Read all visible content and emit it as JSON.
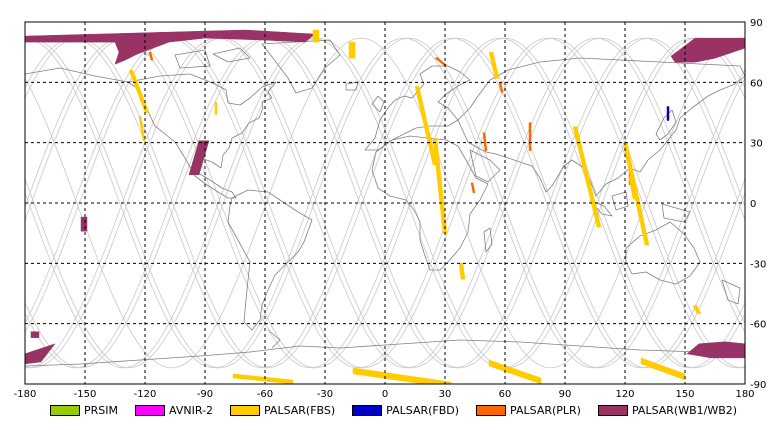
{
  "chart_data": {
    "type": "map",
    "projection": "equirectangular",
    "xlim": [
      -180,
      180
    ],
    "ylim": [
      -90,
      90
    ],
    "x_ticks": [
      "-180",
      "-150",
      "-120",
      "-90",
      "-60",
      "-30",
      "0",
      "30",
      "60",
      "90",
      "120",
      "150",
      "180"
    ],
    "y_ticks": [
      "90",
      "60",
      "30",
      "0",
      "-30",
      "-60",
      "-90"
    ],
    "grid": true,
    "legend_position": "bottom",
    "legend": [
      {
        "key": "prsim",
        "label": "PRSIM",
        "color": "#99cc00"
      },
      {
        "key": "avnir2",
        "label": "AVNIR-2",
        "color": "#ff00ff"
      },
      {
        "key": "fbs",
        "label": "PALSAR(FBS)",
        "color": "#ffcc00"
      },
      {
        "key": "fbd",
        "label": "PALSAR(FBD)",
        "color": "#0000cc"
      },
      {
        "key": "plr",
        "label": "PALSAR(PLR)",
        "color": "#ff6600"
      },
      {
        "key": "wb",
        "label": "PALSAR(WB1/WB2)",
        "color": "#993366"
      }
    ],
    "orbit_track_color": "#c8c8c8",
    "coastline_color": "#808080",
    "observation_swaths": [
      {
        "sensor": "wb",
        "coords": [
          [
            -180,
            83
          ],
          [
            -70,
            86
          ],
          [
            -35,
            84
          ],
          [
            -40,
            80
          ],
          [
            -60,
            81
          ],
          [
            -90,
            82
          ],
          [
            -108,
            80
          ],
          [
            -124,
            74
          ],
          [
            -130,
            71
          ],
          [
            -135,
            69
          ],
          [
            -133,
            75
          ],
          [
            -135,
            80
          ],
          [
            -180,
            80
          ]
        ]
      },
      {
        "sensor": "wb",
        "coords": [
          [
            143,
            73
          ],
          [
            155,
            82
          ],
          [
            180,
            82
          ],
          [
            180,
            77
          ],
          [
            165,
            72
          ],
          [
            155,
            70
          ],
          [
            145,
            70
          ]
        ]
      },
      {
        "sensor": "wb",
        "coords": [
          [
            -93,
            31
          ],
          [
            -88,
            31
          ],
          [
            -93,
            14
          ],
          [
            -98,
            14
          ]
        ]
      },
      {
        "sensor": "wb",
        "coords": [
          [
            -152,
            -7
          ],
          [
            -149,
            -7
          ],
          [
            -149,
            -14
          ],
          [
            -152,
            -14
          ]
        ]
      },
      {
        "sensor": "wb",
        "coords": [
          [
            -180,
            -75
          ],
          [
            -165,
            -70
          ],
          [
            -172,
            -79
          ],
          [
            -180,
            -80
          ]
        ]
      },
      {
        "sensor": "wb",
        "coords": [
          [
            -177,
            -64
          ],
          [
            -173,
            -64
          ],
          [
            -173,
            -67
          ],
          [
            -177,
            -67
          ]
        ]
      },
      {
        "sensor": "wb",
        "coords": [
          [
            157,
            -70
          ],
          [
            170,
            -69
          ],
          [
            180,
            -70
          ],
          [
            180,
            -77
          ],
          [
            163,
            -77
          ],
          [
            151,
            -75
          ]
        ]
      },
      {
        "sensor": "fbd",
        "coords": [
          [
            141,
            48
          ],
          [
            142,
            48
          ],
          [
            142,
            41
          ],
          [
            141,
            41
          ]
        ]
      },
      {
        "sensor": "plr",
        "coords": [
          [
            25,
            72
          ],
          [
            30,
            68
          ],
          [
            31,
            68.5
          ],
          [
            26,
            72.5
          ]
        ]
      },
      {
        "sensor": "plr",
        "coords": [
          [
            57,
            60
          ],
          [
            58,
            60
          ],
          [
            59,
            55
          ],
          [
            58,
            55
          ]
        ]
      },
      {
        "sensor": "plr",
        "coords": [
          [
            49,
            35
          ],
          [
            50,
            35
          ],
          [
            51,
            26
          ],
          [
            50,
            26
          ]
        ]
      },
      {
        "sensor": "plr",
        "coords": [
          [
            43,
            10
          ],
          [
            44,
            10
          ],
          [
            45,
            5
          ],
          [
            44,
            5
          ]
        ]
      },
      {
        "sensor": "plr",
        "coords": [
          [
            72,
            40
          ],
          [
            73,
            40
          ],
          [
            73,
            26
          ],
          [
            72,
            26
          ]
        ]
      },
      {
        "sensor": "plr",
        "coords": [
          [
            122,
            17
          ],
          [
            123,
            17
          ],
          [
            123,
            9
          ],
          [
            122,
            9
          ]
        ]
      },
      {
        "sensor": "plr",
        "coords": [
          [
            -118,
            75
          ],
          [
            -117,
            75
          ],
          [
            -116,
            71
          ],
          [
            -117,
            71
          ]
        ]
      },
      {
        "sensor": "fbs",
        "coords": [
          [
            -128,
            66
          ],
          [
            -126,
            66
          ],
          [
            -118,
            45
          ],
          [
            -120,
            45
          ]
        ]
      },
      {
        "sensor": "fbs",
        "coords": [
          [
            -123,
            43
          ],
          [
            -122,
            43
          ],
          [
            -120,
            31
          ],
          [
            -121,
            31
          ]
        ]
      },
      {
        "sensor": "fbs",
        "coords": [
          [
            -85,
            50
          ],
          [
            -84,
            50
          ],
          [
            -84,
            44
          ],
          [
            -85,
            44
          ]
        ]
      },
      {
        "sensor": "fbs",
        "coords": [
          [
            -36,
            86
          ],
          [
            -33,
            86
          ],
          [
            -33,
            80
          ],
          [
            -36,
            80
          ]
        ]
      },
      {
        "sensor": "fbs",
        "coords": [
          [
            -18,
            80
          ],
          [
            -15,
            80
          ],
          [
            -15,
            72
          ],
          [
            -18,
            72
          ]
        ]
      },
      {
        "sensor": "fbs",
        "coords": [
          [
            15,
            58
          ],
          [
            17,
            58
          ],
          [
            26,
            19
          ],
          [
            24,
            19
          ]
        ]
      },
      {
        "sensor": "fbs",
        "coords": [
          [
            24,
            32
          ],
          [
            26,
            32
          ],
          [
            31,
            -15
          ],
          [
            29,
            -15
          ]
        ]
      },
      {
        "sensor": "fbs",
        "coords": [
          [
            37,
            -30
          ],
          [
            39,
            -30
          ],
          [
            40,
            -38
          ],
          [
            38,
            -38
          ]
        ]
      },
      {
        "sensor": "fbs",
        "coords": [
          [
            52,
            75
          ],
          [
            54,
            75
          ],
          [
            57,
            62
          ],
          [
            55,
            62
          ]
        ]
      },
      {
        "sensor": "fbs",
        "coords": [
          [
            94,
            38
          ],
          [
            96,
            38
          ],
          [
            108,
            -12
          ],
          [
            106,
            -12
          ]
        ]
      },
      {
        "sensor": "fbs",
        "coords": [
          [
            119,
            30
          ],
          [
            121,
            30
          ],
          [
            132,
            -21
          ],
          [
            130,
            -21
          ]
        ]
      },
      {
        "sensor": "fbs",
        "coords": [
          [
            122,
            13
          ],
          [
            124,
            13
          ],
          [
            126,
            2
          ],
          [
            124,
            2
          ]
        ]
      },
      {
        "sensor": "fbs",
        "coords": [
          [
            154,
            -51
          ],
          [
            156,
            -51
          ],
          [
            158,
            -55
          ],
          [
            156,
            -55
          ]
        ]
      },
      {
        "sensor": "fbs",
        "coords": [
          [
            -76,
            -87
          ],
          [
            -46,
            -90
          ],
          [
            -46,
            -88
          ],
          [
            -76,
            -85
          ]
        ]
      },
      {
        "sensor": "fbs",
        "coords": [
          [
            -16,
            -85
          ],
          [
            33,
            -92
          ],
          [
            33,
            -89
          ],
          [
            -16,
            -82
          ]
        ]
      },
      {
        "sensor": "fbs",
        "coords": [
          [
            52,
            -81
          ],
          [
            78,
            -90
          ],
          [
            78,
            -87
          ],
          [
            52,
            -78
          ]
        ]
      },
      {
        "sensor": "fbs",
        "coords": [
          [
            128,
            -80
          ],
          [
            150,
            -88
          ],
          [
            150,
            -85
          ],
          [
            128,
            -77
          ]
        ]
      }
    ]
  }
}
